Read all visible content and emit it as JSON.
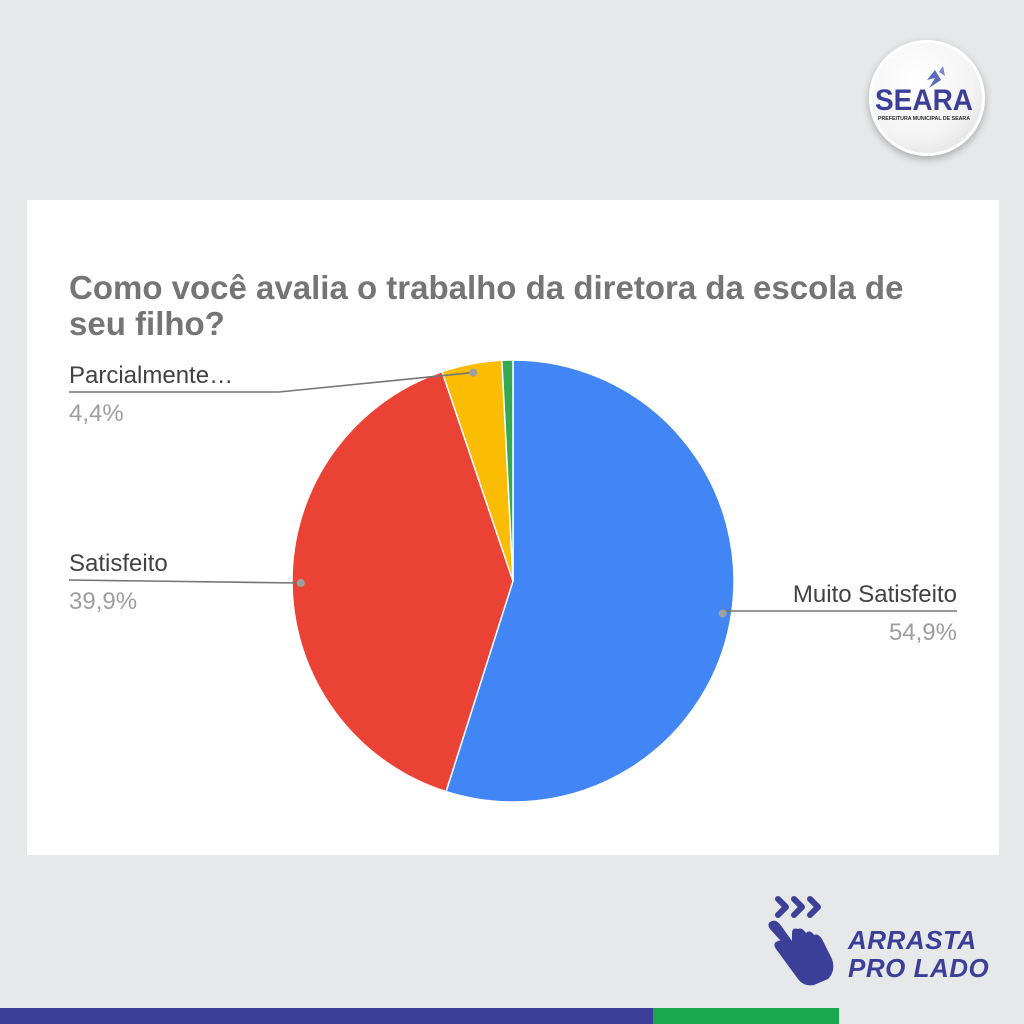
{
  "brand": {
    "name": "SEARA",
    "subtitle": "PREFEITURA MUNICIPAL DE SEARA",
    "colors": {
      "blue": "#3b3f98",
      "green": "#1aa84f",
      "background": "#e7e8ea"
    }
  },
  "chart_data": {
    "type": "pie",
    "title": "Como você avalia o trabalho da diretora da escola de seu filho?",
    "legend": "none",
    "slices": [
      {
        "label": "Muito Satisfeito",
        "value": 54.9,
        "value_label": "54,9%",
        "color": "#4285f4"
      },
      {
        "label": "Satisfeito",
        "value": 39.9,
        "value_label": "39,9%",
        "color": "#ea4335"
      },
      {
        "label": "Parcialmente…",
        "value": 4.4,
        "value_label": "4,4%",
        "color": "#fbbc04"
      },
      {
        "label": "",
        "value": 0.8,
        "value_label": "",
        "color": "#34a853"
      }
    ]
  },
  "swipe": {
    "line1": "ARRASTA",
    "line2": "PRO LADO",
    "icon": "swipe-hand-icon"
  }
}
